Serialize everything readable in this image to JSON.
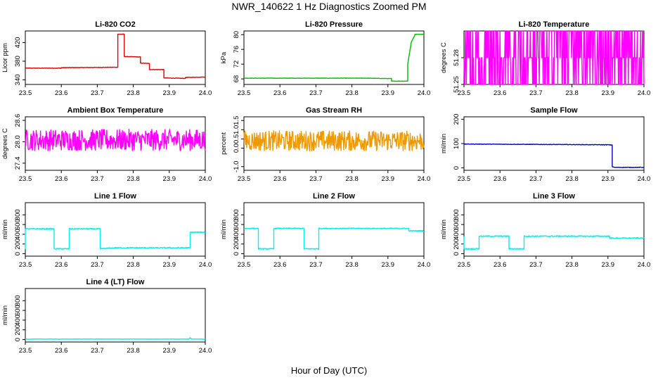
{
  "figure": {
    "title": "NWR_140622  1 Hz Diagnostics Zoomed PM",
    "xlabel": "Hour of Day (UTC)"
  },
  "chart_data": [
    {
      "id": "co2",
      "type": "line",
      "title": "Li-820 CO2",
      "ylabel": "Licor ppm",
      "color": "#dd0000",
      "xlim": [
        23.5,
        24.0
      ],
      "xticks": [
        "23.5",
        "23.6",
        "23.7",
        "23.8",
        "23.9",
        "24.0"
      ],
      "ylim": [
        330,
        445
      ],
      "yticks": [
        340,
        380,
        420
      ],
      "series": [
        {
          "name": "CO2",
          "x": [
            23.5,
            23.6,
            23.6,
            23.757,
            23.757,
            23.775,
            23.775,
            23.82,
            23.82,
            23.845,
            23.845,
            23.885,
            23.885,
            23.945,
            23.945,
            24.0
          ],
          "y": [
            365,
            365,
            366,
            367,
            438,
            438,
            390,
            389,
            376,
            375,
            362,
            362,
            344,
            343,
            345,
            346
          ]
        }
      ],
      "noise": 0.5
    },
    {
      "id": "pressure",
      "type": "line",
      "title": "Li-820 Pressure",
      "ylabel": "kPa",
      "color": "#00bb00",
      "xlim": [
        23.5,
        24.0
      ],
      "xticks": [
        "23.5",
        "23.6",
        "23.7",
        "23.8",
        "23.9",
        "24.0"
      ],
      "ylim": [
        66.5,
        81
      ],
      "yticks": [
        68,
        72,
        76,
        80
      ],
      "series": [
        {
          "name": "Pressure",
          "x": [
            23.5,
            23.84,
            23.9,
            23.91,
            23.91,
            23.955,
            23.955,
            23.965,
            23.975,
            23.975,
            24.0
          ],
          "y": [
            68.2,
            68.2,
            68.1,
            68.1,
            67.4,
            67.4,
            72,
            78,
            79.9,
            80.1,
            80.1
          ]
        }
      ],
      "noise": 0.05
    },
    {
      "id": "li820temp",
      "type": "line",
      "title": "Li-820 Temperature",
      "ylabel": "degrees C",
      "color": "#ff00ff",
      "xlim": [
        23.5,
        24.0
      ],
      "xticks": [
        "23.5",
        "23.6",
        "23.7",
        "23.8",
        "23.9",
        "24.0"
      ],
      "ylim": [
        51.25,
        51.31
      ],
      "yticks": [
        "51.25",
        "51.28"
      ],
      "series": [
        {
          "name": "Temperature",
          "x": [
            23.5,
            24.0
          ],
          "y": [
            51.28,
            51.28
          ]
        }
      ],
      "levels": [
        51.25,
        51.28,
        51.31
      ]
    },
    {
      "id": "boxtemp",
      "type": "line",
      "title": "Ambient Box Temperature",
      "ylabel": "degrees C",
      "color": "#ff00ff",
      "xlim": [
        23.5,
        24.0
      ],
      "xticks": [
        "23.5",
        "23.6",
        "23.7",
        "23.8",
        "23.9",
        "24.0"
      ],
      "ylim": [
        27.2,
        28.7
      ],
      "yticks": [
        "27.4",
        "28.0",
        "28.6"
      ],
      "series": [
        {
          "name": "Box Temperature",
          "x": [
            23.5,
            24.0
          ],
          "y": [
            28.05,
            28.05
          ]
        }
      ],
      "noise": 0.3
    },
    {
      "id": "rh",
      "type": "line",
      "title": "Gas Stream RH",
      "ylabel": "percent",
      "color": "#ee9900",
      "xlim": [
        23.5,
        24.0
      ],
      "xticks": [
        "23.5",
        "23.6",
        "23.7",
        "23.8",
        "23.9",
        "24.0"
      ],
      "ylim": [
        -1.2,
        1.7
      ],
      "yticks": [
        "-1.0",
        "0.0",
        "0.5",
        "1.0",
        "1.5"
      ],
      "series": [
        {
          "name": "RH",
          "x": [
            23.5,
            24.0
          ],
          "y": [
            0.4,
            0.4
          ]
        }
      ],
      "noise": 0.55
    },
    {
      "id": "sampleflow",
      "type": "line",
      "title": "Sample Flow",
      "ylabel": "ml/min",
      "color": "#0000cc",
      "xlim": [
        23.5,
        24.0
      ],
      "xticks": [
        "23.5",
        "23.6",
        "23.7",
        "23.8",
        "23.9",
        "24.0"
      ],
      "ylim": [
        -10,
        210
      ],
      "yticks": [
        0,
        100,
        200
      ],
      "series": [
        {
          "name": "Sample Flow",
          "x": [
            23.5,
            23.9,
            23.912,
            23.912,
            23.918,
            24.0
          ],
          "y": [
            98,
            95,
            94,
            5,
            2,
            2
          ]
        }
      ],
      "noise": 1
    },
    {
      "id": "line1",
      "type": "line",
      "title": "Line 1 Flow",
      "ylabel": "ml/min",
      "color": "#00eeee",
      "xlim": [
        23.5,
        24.0
      ],
      "xticks": [
        "23.5",
        "23.6",
        "23.7",
        "23.8",
        "23.9",
        "24.0"
      ],
      "ylim": [
        -50,
        1050
      ],
      "yticks": [
        0,
        200,
        400,
        600,
        800
      ],
      "series": [
        {
          "name": "Line 1",
          "x": [
            23.5,
            23.5,
            23.58,
            23.58,
            23.622,
            23.622,
            23.708,
            23.708,
            23.75,
            23.958,
            23.958,
            24.0
          ],
          "y": [
            100,
            510,
            510,
            100,
            100,
            510,
            510,
            100,
            120,
            120,
            440,
            440
          ]
        }
      ],
      "noise": 12
    },
    {
      "id": "line2",
      "type": "line",
      "title": "Line 2 Flow",
      "ylabel": "ml/min",
      "color": "#00eeee",
      "xlim": [
        23.5,
        24.0
      ],
      "xticks": [
        "23.5",
        "23.6",
        "23.7",
        "23.8",
        "23.9",
        "24.0"
      ],
      "ylim": [
        -50,
        1050
      ],
      "yticks": [
        0,
        200,
        400,
        600,
        800
      ],
      "series": [
        {
          "name": "Line 2",
          "x": [
            23.5,
            23.54,
            23.54,
            23.583,
            23.583,
            23.667,
            23.667,
            23.708,
            23.708,
            23.958,
            23.958,
            24.0
          ],
          "y": [
            520,
            520,
            100,
            100,
            520,
            520,
            100,
            100,
            520,
            520,
            470,
            470
          ]
        }
      ],
      "noise": 10
    },
    {
      "id": "line3",
      "type": "line",
      "title": "Line 3 Flow",
      "ylabel": "ml/min",
      "color": "#00eeee",
      "xlim": [
        23.5,
        24.0
      ],
      "xticks": [
        "23.5",
        "23.6",
        "23.7",
        "23.8",
        "23.9",
        "24.0"
      ],
      "ylim": [
        -50,
        1050
      ],
      "yticks": [
        0,
        200,
        400,
        600,
        800
      ],
      "series": [
        {
          "name": "Line 3",
          "x": [
            23.5,
            23.5,
            23.542,
            23.542,
            23.625,
            23.625,
            23.667,
            23.667,
            23.905,
            23.905,
            24.0
          ],
          "y": [
            350,
            100,
            100,
            360,
            360,
            100,
            100,
            360,
            360,
            320,
            320
          ]
        }
      ],
      "noise": 12
    },
    {
      "id": "line4",
      "type": "line",
      "title": "Line 4 (LT) Flow",
      "ylabel": "ml/min",
      "color": "#00eeee",
      "xlim": [
        23.5,
        24.0
      ],
      "xticks": [
        "23.5",
        "23.6",
        "23.7",
        "23.8",
        "23.9",
        "24.0"
      ],
      "ylim": [
        -50,
        1050
      ],
      "yticks": [
        0,
        200,
        400,
        600,
        800
      ],
      "series": [
        {
          "name": "Line 4 (LT)",
          "x": [
            23.5,
            23.955,
            23.958,
            23.962,
            24.0
          ],
          "y": [
            10,
            10,
            40,
            10,
            10
          ]
        }
      ],
      "noise": 3
    }
  ]
}
